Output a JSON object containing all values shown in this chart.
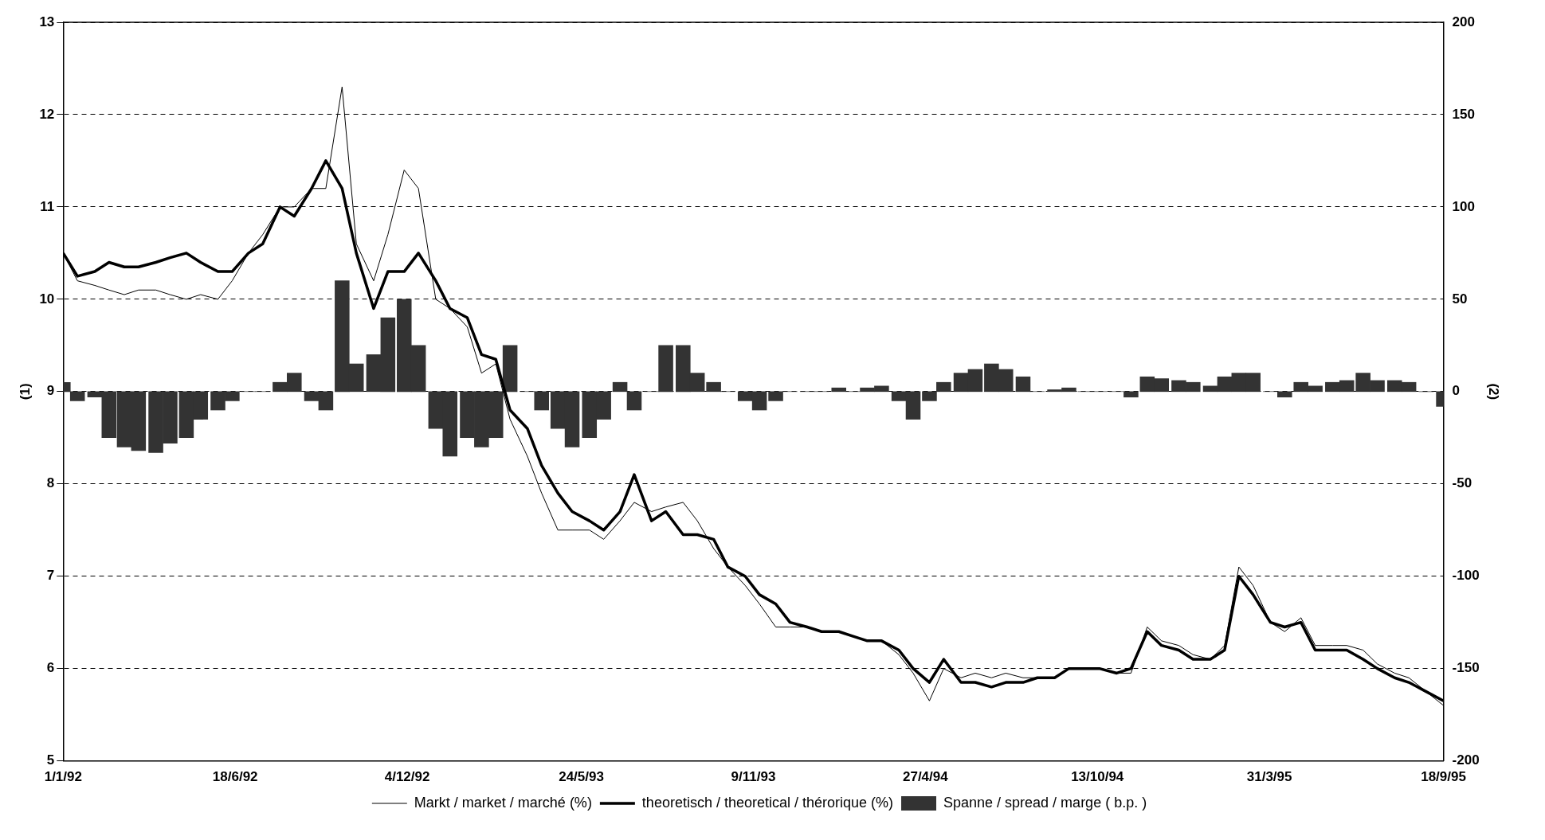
{
  "chart_data": {
    "type": "line",
    "ylabel": "(1)",
    "y2label": "(2)",
    "x": [
      "1992-01-01",
      "1992-01-15",
      "1992-02-01",
      "1992-02-15",
      "1992-03-01",
      "1992-03-15",
      "1992-04-01",
      "1992-04-15",
      "1992-05-01",
      "1992-05-15",
      "1992-06-01",
      "1992-06-15",
      "1992-07-01",
      "1992-07-15",
      "1992-08-01",
      "1992-08-15",
      "1992-09-01",
      "1992-09-15",
      "1992-10-01",
      "1992-10-15",
      "1992-11-01",
      "1992-11-15",
      "1992-12-01",
      "1992-12-15",
      "1993-01-01",
      "1993-01-15",
      "1993-02-01",
      "1993-02-15",
      "1993-03-01",
      "1993-03-15",
      "1993-04-01",
      "1993-04-15",
      "1993-05-01",
      "1993-05-15",
      "1993-06-01",
      "1993-06-15",
      "1993-07-01",
      "1993-07-15",
      "1993-08-01",
      "1993-08-15",
      "1993-09-01",
      "1993-09-15",
      "1993-10-01",
      "1993-10-15",
      "1993-11-01",
      "1993-11-15",
      "1993-12-01",
      "1993-12-15",
      "1994-01-01",
      "1994-01-15",
      "1994-02-01",
      "1994-02-15",
      "1994-03-01",
      "1994-03-15",
      "1994-04-01",
      "1994-04-15",
      "1994-05-01",
      "1994-05-15",
      "1994-06-01",
      "1994-06-15",
      "1994-07-01",
      "1994-07-15",
      "1994-08-01",
      "1994-08-15",
      "1994-09-01",
      "1994-09-15",
      "1994-10-01",
      "1994-10-15",
      "1994-11-01",
      "1994-11-15",
      "1994-12-01",
      "1994-12-15",
      "1995-01-01",
      "1995-01-15",
      "1995-02-01",
      "1995-02-15",
      "1995-03-01",
      "1995-03-15",
      "1995-04-01",
      "1995-04-15",
      "1995-05-01",
      "1995-05-15",
      "1995-06-01",
      "1995-06-15",
      "1995-07-01",
      "1995-07-15",
      "1995-08-01",
      "1995-08-15",
      "1995-09-01",
      "1995-09-18"
    ],
    "series": [
      {
        "name": "Markt / market / marché (%)",
        "color": "#000000",
        "values": [
          10.5,
          10.2,
          10.15,
          10.1,
          10.05,
          10.1,
          10.1,
          10.05,
          10.0,
          10.05,
          10.0,
          10.2,
          10.5,
          10.7,
          11.0,
          11.0,
          11.2,
          11.2,
          12.3,
          10.6,
          10.2,
          10.7,
          11.4,
          11.2,
          10.0,
          9.9,
          9.7,
          9.2,
          9.3,
          8.7,
          8.3,
          7.9,
          7.5,
          7.5,
          7.5,
          7.4,
          7.6,
          7.8,
          7.7,
          7.75,
          7.8,
          7.6,
          7.3,
          7.1,
          6.9,
          6.7,
          6.45,
          6.45,
          6.45,
          6.4,
          6.4,
          6.35,
          6.3,
          6.3,
          6.15,
          5.95,
          5.65,
          6.0,
          5.9,
          5.95,
          5.9,
          5.95,
          5.9,
          5.9,
          5.9,
          6.0,
          6.0,
          6.0,
          5.95,
          5.95,
          6.45,
          6.3,
          6.25,
          6.15,
          6.1,
          6.25,
          7.1,
          6.9,
          6.5,
          6.4,
          6.55,
          6.25,
          6.25,
          6.25,
          6.2,
          6.05,
          5.95,
          5.9,
          5.75,
          5.6
        ]
      },
      {
        "name": "theoretisch / theoretical / thérorique (%)",
        "color": "#000000",
        "values": [
          10.5,
          10.25,
          10.3,
          10.4,
          10.35,
          10.35,
          10.4,
          10.45,
          10.5,
          10.4,
          10.3,
          10.3,
          10.5,
          10.6,
          11.0,
          10.9,
          11.2,
          11.5,
          11.2,
          10.5,
          9.9,
          10.3,
          10.3,
          10.5,
          10.2,
          9.9,
          9.8,
          9.4,
          9.35,
          8.8,
          8.6,
          8.2,
          7.9,
          7.7,
          7.6,
          7.5,
          7.7,
          8.1,
          7.6,
          7.7,
          7.45,
          7.45,
          7.4,
          7.1,
          7.0,
          6.8,
          6.7,
          6.5,
          6.45,
          6.4,
          6.4,
          6.35,
          6.3,
          6.3,
          6.2,
          6.0,
          5.85,
          6.1,
          5.85,
          5.85,
          5.8,
          5.85,
          5.85,
          5.9,
          5.9,
          6.0,
          6.0,
          6.0,
          5.95,
          6.0,
          6.4,
          6.25,
          6.2,
          6.1,
          6.1,
          6.2,
          7.0,
          6.8,
          6.5,
          6.45,
          6.5,
          6.2,
          6.2,
          6.2,
          6.1,
          6.0,
          5.9,
          5.85,
          5.75,
          5.65
        ]
      },
      {
        "name": "Spanne / spread / marge ( b.p. )",
        "type": "bar",
        "axis": "y2",
        "color": "#333333",
        "values": [
          5,
          -5,
          -3,
          -25,
          -30,
          -32,
          -33,
          -28,
          -25,
          -15,
          -10,
          -5,
          0,
          0,
          5,
          10,
          -5,
          -10,
          60,
          15,
          20,
          40,
          50,
          25,
          -20,
          -35,
          -25,
          -30,
          -25,
          25,
          0,
          -10,
          -20,
          -30,
          -25,
          -15,
          5,
          -10,
          0,
          25,
          25,
          10,
          5,
          0,
          -5,
          -10,
          -5,
          0,
          0,
          0,
          2,
          0,
          2,
          3,
          -5,
          -15,
          -5,
          5,
          10,
          12,
          15,
          12,
          8,
          0,
          1,
          2,
          0,
          0,
          0,
          -3,
          8,
          7,
          6,
          5,
          3,
          8,
          10,
          10,
          0,
          -3,
          5,
          3,
          5,
          6,
          10,
          6,
          6,
          5,
          0,
          -8
        ]
      }
    ],
    "xlim": [
      "1992-01-01",
      "1995-09-18"
    ],
    "xticks": [
      {
        "value": "1992-01-01",
        "label": "1/1/92"
      },
      {
        "value": "1992-06-18",
        "label": "18/6/92"
      },
      {
        "value": "1992-12-04",
        "label": "4/12/92"
      },
      {
        "value": "1993-05-24",
        "label": "24/5/93"
      },
      {
        "value": "1993-11-09",
        "label": "9/11/93"
      },
      {
        "value": "1994-04-27",
        "label": "27/4/94"
      },
      {
        "value": "1994-10-13",
        "label": "13/10/94"
      },
      {
        "value": "1995-03-31",
        "label": "31/3/95"
      },
      {
        "value": "1995-09-18",
        "label": "18/9/95"
      }
    ],
    "ylim": [
      5,
      13
    ],
    "yticks": [
      5,
      6,
      7,
      8,
      9,
      10,
      11,
      12,
      13
    ],
    "y2lim": [
      -200,
      200
    ],
    "y2ticks": [
      -200,
      -150,
      -100,
      -50,
      0,
      50,
      100,
      150,
      200
    ],
    "grid": "y",
    "legend": "bottom",
    "marker": "none",
    "line_style": "solid"
  }
}
